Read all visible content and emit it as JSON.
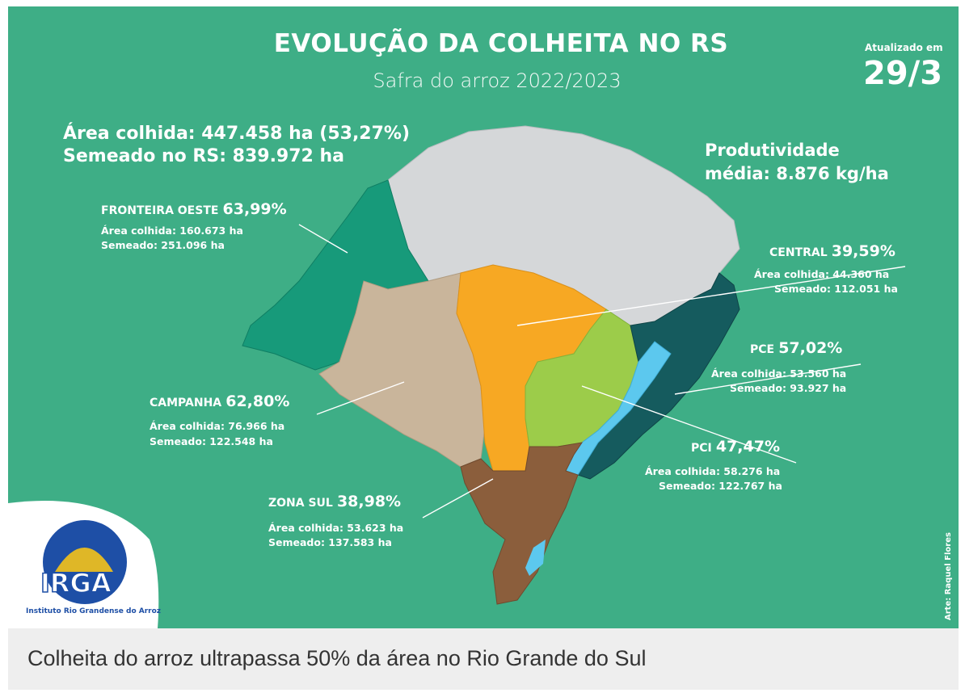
{
  "header": {
    "title": "EVOLUÇÃO DA COLHEITA NO RS",
    "subtitle": "Safra do arroz 2022/2023",
    "updated_label": "Atualizado em",
    "updated_date": "29/3"
  },
  "totals": {
    "harvested": "Área colhida: 447.458 ha (53,27%)",
    "sown": "Semeado no RS: 839.972 ha"
  },
  "productivity": {
    "line1": "Produtividade",
    "line2": "média: 8.876 kg/ha"
  },
  "regions": [
    {
      "key": "fronteira",
      "name": "FRONTEIRA OESTE",
      "percent": "63,99%",
      "harvested": "Área colhida: 160.673 ha",
      "sown": "Semeado: 251.096 ha",
      "color": "#179a7a"
    },
    {
      "key": "central",
      "name": "CENTRAL",
      "percent": "39,59%",
      "harvested": "Área colhida: 44.360 ha",
      "sown": "Semeado: 112.051 ha",
      "color": "#f7a823"
    },
    {
      "key": "pce",
      "name": "PCE",
      "percent": "57,02%",
      "harvested": "Área colhida: 53.560 ha",
      "sown": "Semeado: 93.927 ha",
      "color": "#5cc8ee"
    },
    {
      "key": "campanha",
      "name": "CAMPANHA",
      "percent": "62,80%",
      "harvested": "Área colhida: 76.966 ha",
      "sown": "Semeado: 122.548 ha",
      "color": "#c9b59b"
    },
    {
      "key": "pci",
      "name": "PCI",
      "percent": "47,47%",
      "harvested": "Área colhida: 58.276 ha",
      "sown": "Semeado: 122.767 ha",
      "color": "#9ccc4a"
    },
    {
      "key": "zonasul",
      "name": "ZONA SUL",
      "percent": "38,98%",
      "harvested": "Área colhida: 53.623 ha",
      "sown": "Semeado: 137.583 ha",
      "color": "#8b5e3c"
    }
  ],
  "logo": {
    "text": "IRGA",
    "subtext": "Instituto Rio Grandense do Arroz"
  },
  "credit": "Arte: Raquel Flores",
  "caption": "Colheita do arroz ultrapassa 50% da área no Rio Grande do Sul",
  "colors": {
    "background": "#3eae86",
    "north_region": "#d5d7d9",
    "coast_dark": "#155b5e",
    "caption_bar": "#eeeeee"
  }
}
